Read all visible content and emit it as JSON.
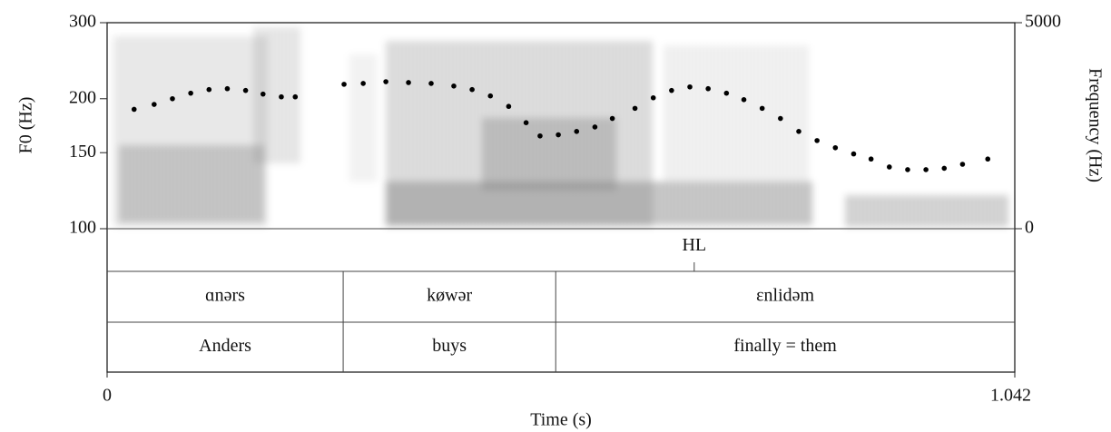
{
  "chart_data": {
    "type": "pitch-track",
    "x_label": "Time (s)",
    "y_label": "F0 (Hz)",
    "y2_label": "Frequency (Hz)",
    "xlim": [
      0,
      1.042
    ],
    "xticks": [
      0,
      1.042
    ],
    "ylim": [
      100,
      300
    ],
    "yticks": [
      100,
      150,
      200,
      300
    ],
    "log_y": true,
    "y2lim": [
      0,
      5000
    ],
    "y2ticks": [
      0,
      5000
    ],
    "color": "#000000",
    "x": [
      0.031,
      0.054,
      0.075,
      0.096,
      0.117,
      0.138,
      0.159,
      0.179,
      0.2,
      0.216,
      0.244,
      0.272,
      0.294,
      0.32,
      0.346,
      0.372,
      0.398,
      0.419,
      0.44,
      0.461,
      0.481,
      0.497,
      0.518,
      0.539,
      0.56,
      0.58,
      0.606,
      0.627,
      0.648,
      0.669,
      0.69,
      0.711,
      0.731,
      0.752,
      0.773,
      0.794,
      0.815,
      0.836,
      0.857,
      0.877,
      0.898,
      0.919,
      0.94,
      0.961,
      0.982,
      1.011
    ],
    "values": [
      189,
      194,
      200,
      206,
      210,
      211,
      209,
      205,
      202,
      202,
      null,
      216,
      217,
      219,
      218,
      217,
      214,
      210,
      203,
      192,
      176,
      164,
      165,
      168,
      172,
      180,
      190,
      201,
      209,
      213,
      211,
      206,
      199,
      190,
      180,
      168,
      160,
      154,
      149,
      145,
      139,
      137,
      137,
      138,
      141,
      145
    ],
    "tiers": [
      {
        "points": [
          0.674
        ],
        "labels": [
          "HL"
        ]
      },
      {
        "boundaries": [
          0.271,
          0.515
        ],
        "labels": [
          "ɑnərs",
          "køwər",
          "ɛnlidəm"
        ]
      },
      {
        "boundaries": [
          0.271,
          0.515
        ],
        "labels": [
          "Anders",
          "buys",
          "finally = them"
        ]
      }
    ]
  }
}
